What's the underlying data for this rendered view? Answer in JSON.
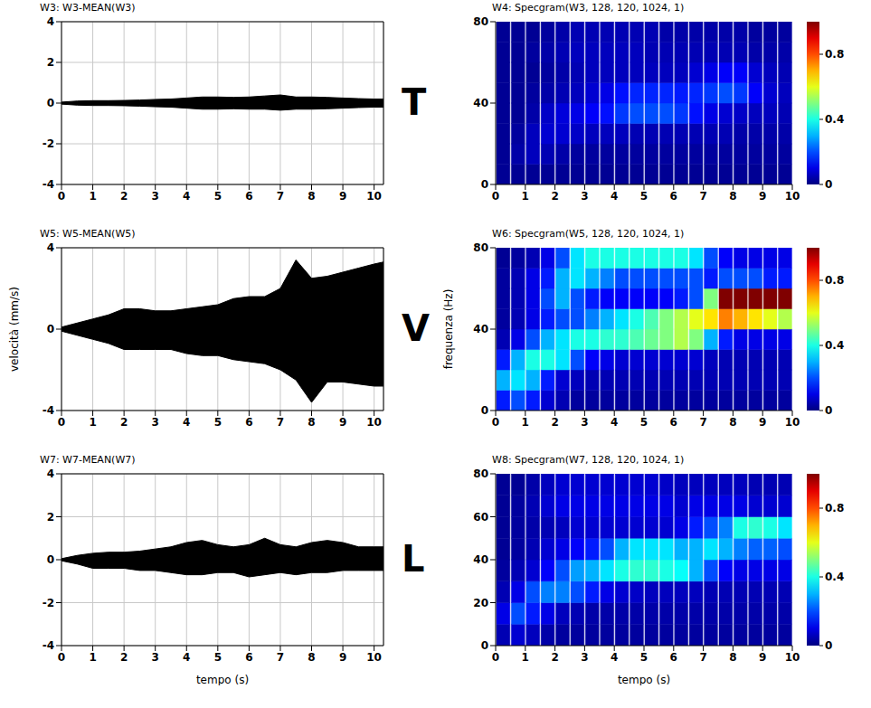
{
  "chart_data": [
    {
      "type": "area",
      "title": "W3: W3-MEAN(W3)",
      "annotation": "T",
      "color": "#000000",
      "grid": true,
      "x": [
        0,
        0.5,
        1,
        1.5,
        2,
        2.5,
        3,
        3.5,
        4,
        4.5,
        5,
        5.5,
        6,
        6.5,
        7,
        7.5,
        8,
        8.5,
        9,
        9.5,
        10,
        10.3
      ],
      "upper": [
        0.05,
        0.1,
        0.12,
        0.12,
        0.13,
        0.15,
        0.18,
        0.2,
        0.25,
        0.3,
        0.3,
        0.28,
        0.3,
        0.35,
        0.4,
        0.3,
        0.3,
        0.28,
        0.25,
        0.22,
        0.2,
        0.2
      ],
      "lower": [
        -0.05,
        -0.1,
        -0.12,
        -0.12,
        -0.13,
        -0.15,
        -0.18,
        -0.2,
        -0.25,
        -0.3,
        -0.3,
        -0.28,
        -0.3,
        -0.3,
        -0.35,
        -0.3,
        -0.3,
        -0.28,
        -0.25,
        -0.22,
        -0.2,
        -0.2
      ],
      "xlim": [
        0,
        10.3
      ],
      "xticks": [
        0,
        1,
        2,
        3,
        4,
        5,
        6,
        7,
        8,
        9,
        10
      ],
      "ylim": [
        -4,
        4
      ],
      "yticks": [
        -4,
        -2,
        0,
        2,
        4
      ]
    },
    {
      "type": "heatmap",
      "title": "W4: Specgram(W3, 128, 120, 1024, 1)",
      "grid": false,
      "x_edges": [
        0,
        0.5,
        1,
        1.5,
        2,
        2.5,
        3,
        3.5,
        4,
        4.5,
        5,
        5.5,
        6,
        6.5,
        7,
        7.5,
        8,
        8.5,
        9,
        9.5,
        10
      ],
      "y_edges": [
        0,
        10,
        20,
        30,
        40,
        50,
        60,
        70,
        80
      ],
      "z": [
        [
          0.02,
          0.02,
          0.02,
          0.02,
          0.02,
          0.02,
          0.02,
          0.02,
          0.02,
          0.02,
          0.02,
          0.02,
          0.02,
          0.02,
          0.02,
          0.02,
          0.02,
          0.02,
          0.02,
          0.02
        ],
        [
          0.02,
          0.04,
          0.06,
          0.05,
          0.04,
          0.03,
          0.03,
          0.03,
          0.03,
          0.03,
          0.03,
          0.03,
          0.03,
          0.03,
          0.03,
          0.03,
          0.03,
          0.03,
          0.03,
          0.03
        ],
        [
          0.02,
          0.03,
          0.06,
          0.08,
          0.08,
          0.07,
          0.06,
          0.06,
          0.06,
          0.05,
          0.05,
          0.05,
          0.05,
          0.05,
          0.05,
          0.05,
          0.04,
          0.04,
          0.04,
          0.04
        ],
        [
          0.02,
          0.02,
          0.04,
          0.07,
          0.09,
          0.1,
          0.12,
          0.14,
          0.18,
          0.2,
          0.2,
          0.2,
          0.18,
          0.14,
          0.1,
          0.08,
          0.07,
          0.06,
          0.06,
          0.05
        ],
        [
          0.02,
          0.02,
          0.03,
          0.04,
          0.05,
          0.06,
          0.08,
          0.1,
          0.14,
          0.16,
          0.16,
          0.16,
          0.15,
          0.16,
          0.18,
          0.2,
          0.18,
          0.12,
          0.08,
          0.06
        ],
        [
          0.02,
          0.02,
          0.02,
          0.03,
          0.04,
          0.05,
          0.06,
          0.06,
          0.06,
          0.06,
          0.06,
          0.06,
          0.06,
          0.08,
          0.1,
          0.12,
          0.12,
          0.08,
          0.06,
          0.05
        ],
        [
          0.02,
          0.02,
          0.03,
          0.04,
          0.05,
          0.06,
          0.06,
          0.06,
          0.06,
          0.06,
          0.05,
          0.05,
          0.05,
          0.05,
          0.05,
          0.05,
          0.05,
          0.04,
          0.04,
          0.04
        ],
        [
          0.02,
          0.02,
          0.02,
          0.03,
          0.04,
          0.05,
          0.05,
          0.05,
          0.05,
          0.05,
          0.05,
          0.04,
          0.04,
          0.04,
          0.04,
          0.04,
          0.04,
          0.03,
          0.03,
          0.03
        ]
      ],
      "xlim": [
        0,
        10
      ],
      "xticks": [
        0,
        1,
        2,
        3,
        4,
        5,
        6,
        7,
        8,
        9,
        10
      ],
      "ylim": [
        0,
        80
      ],
      "yticks": [
        0,
        40,
        80
      ],
      "colorbar_range": [
        0,
        1
      ],
      "colorbar_ticks": [
        0,
        0.4,
        0.8
      ]
    },
    {
      "type": "area",
      "title": "W5: W5-MEAN(W5)",
      "annotation": "V",
      "ylabel": "velocità (mm/s)",
      "color": "#000000",
      "grid": true,
      "x": [
        0,
        0.5,
        1,
        1.5,
        2,
        2.5,
        3,
        3.5,
        4,
        4.5,
        5,
        5.5,
        6,
        6.5,
        7,
        7.5,
        8,
        8.5,
        9,
        9.5,
        10,
        10.3
      ],
      "upper": [
        0.1,
        0.3,
        0.5,
        0.7,
        1.0,
        1.0,
        0.9,
        0.9,
        1.0,
        1.1,
        1.2,
        1.5,
        1.6,
        1.6,
        2.0,
        3.4,
        2.5,
        2.6,
        2.8,
        3.0,
        3.2,
        3.3
      ],
      "lower": [
        -0.1,
        -0.3,
        -0.5,
        -0.7,
        -1.0,
        -1.0,
        -1.0,
        -1.0,
        -1.2,
        -1.3,
        -1.3,
        -1.5,
        -1.6,
        -1.7,
        -2.0,
        -2.5,
        -3.6,
        -2.6,
        -2.6,
        -2.7,
        -2.8,
        -2.8
      ],
      "xlim": [
        0,
        10.3
      ],
      "xticks": [
        0,
        1,
        2,
        3,
        4,
        5,
        6,
        7,
        8,
        9,
        10
      ],
      "ylim": [
        -4,
        4
      ],
      "yticks": [
        -4,
        0,
        4
      ]
    },
    {
      "type": "heatmap",
      "title": "W6: Specgram(W5, 128, 120, 1024, 1)",
      "ylabel": "frequenza (Hz)",
      "grid": false,
      "x_edges": [
        0,
        0.5,
        1,
        1.5,
        2,
        2.5,
        3,
        3.5,
        4,
        4.5,
        5,
        5.5,
        6,
        6.5,
        7,
        7.5,
        8,
        8.5,
        9,
        9.5,
        10
      ],
      "y_edges": [
        0,
        10,
        20,
        30,
        40,
        50,
        60,
        70,
        80
      ],
      "z": [
        [
          0.15,
          0.2,
          0.15,
          0.08,
          0.05,
          0.03,
          0.03,
          0.03,
          0.03,
          0.03,
          0.03,
          0.03,
          0.03,
          0.03,
          0.03,
          0.03,
          0.03,
          0.03,
          0.03,
          0.03
        ],
        [
          0.3,
          0.35,
          0.3,
          0.15,
          0.08,
          0.06,
          0.05,
          0.05,
          0.05,
          0.05,
          0.05,
          0.05,
          0.05,
          0.05,
          0.05,
          0.05,
          0.05,
          0.05,
          0.05,
          0.05
        ],
        [
          0.15,
          0.3,
          0.4,
          0.4,
          0.35,
          0.2,
          0.12,
          0.1,
          0.08,
          0.08,
          0.08,
          0.08,
          0.08,
          0.08,
          0.06,
          0.05,
          0.05,
          0.05,
          0.05,
          0.05
        ],
        [
          0.05,
          0.1,
          0.2,
          0.3,
          0.35,
          0.4,
          0.4,
          0.42,
          0.42,
          0.45,
          0.48,
          0.5,
          0.55,
          0.5,
          0.3,
          0.15,
          0.1,
          0.1,
          0.1,
          0.1
        ],
        [
          0.03,
          0.05,
          0.1,
          0.15,
          0.2,
          0.2,
          0.25,
          0.3,
          0.35,
          0.4,
          0.45,
          0.5,
          0.55,
          0.6,
          0.65,
          0.75,
          0.7,
          0.65,
          0.6,
          0.55
        ],
        [
          0.03,
          0.05,
          0.1,
          0.2,
          0.3,
          0.2,
          0.15,
          0.12,
          0.12,
          0.12,
          0.12,
          0.12,
          0.15,
          0.2,
          0.5,
          1.0,
          1.0,
          1.0,
          1.0,
          1.0
        ],
        [
          0.03,
          0.05,
          0.1,
          0.15,
          0.3,
          0.35,
          0.3,
          0.25,
          0.2,
          0.2,
          0.2,
          0.2,
          0.2,
          0.2,
          0.15,
          0.2,
          0.2,
          0.2,
          0.15,
          0.15
        ],
        [
          0.02,
          0.03,
          0.05,
          0.1,
          0.2,
          0.35,
          0.4,
          0.4,
          0.4,
          0.4,
          0.4,
          0.4,
          0.4,
          0.35,
          0.2,
          0.12,
          0.1,
          0.1,
          0.1,
          0.1
        ]
      ],
      "xlim": [
        0,
        10
      ],
      "xticks": [
        0,
        1,
        2,
        3,
        4,
        5,
        6,
        7,
        8,
        9,
        10
      ],
      "ylim": [
        0,
        80
      ],
      "yticks": [
        0,
        40,
        80
      ],
      "colorbar_range": [
        0,
        1
      ],
      "colorbar_ticks": [
        0,
        0.4,
        0.8
      ]
    },
    {
      "type": "area",
      "title": "W7: W7-MEAN(W7)",
      "annotation": "L",
      "xlabel": "tempo (s)",
      "color": "#000000",
      "grid": true,
      "x": [
        0,
        0.5,
        1,
        1.5,
        2,
        2.5,
        3,
        3.5,
        4,
        4.5,
        5,
        5.5,
        6,
        6.5,
        7,
        7.5,
        8,
        8.5,
        9,
        9.5,
        10,
        10.3
      ],
      "upper": [
        0.05,
        0.2,
        0.3,
        0.35,
        0.35,
        0.4,
        0.5,
        0.6,
        0.8,
        0.9,
        0.7,
        0.6,
        0.7,
        1.0,
        0.7,
        0.6,
        0.8,
        0.9,
        0.8,
        0.6,
        0.6,
        0.6
      ],
      "lower": [
        -0.05,
        -0.2,
        -0.4,
        -0.4,
        -0.4,
        -0.5,
        -0.5,
        -0.6,
        -0.7,
        -0.7,
        -0.6,
        -0.6,
        -0.8,
        -0.7,
        -0.6,
        -0.7,
        -0.6,
        -0.6,
        -0.5,
        -0.5,
        -0.5,
        -0.5
      ],
      "xlim": [
        0,
        10.3
      ],
      "xticks": [
        0,
        1,
        2,
        3,
        4,
        5,
        6,
        7,
        8,
        9,
        10
      ],
      "ylim": [
        -4,
        4
      ],
      "yticks": [
        -4,
        -2,
        0,
        2,
        4
      ]
    },
    {
      "type": "heatmap",
      "title": "W8: Specgram(W7, 128, 120, 1024, 1)",
      "xlabel": "tempo (s)",
      "grid": false,
      "x_edges": [
        0,
        0.5,
        1,
        1.5,
        2,
        2.5,
        3,
        3.5,
        4,
        4.5,
        5,
        5.5,
        6,
        6.5,
        7,
        7.5,
        8,
        8.5,
        9,
        9.5,
        10
      ],
      "y_edges": [
        0,
        10,
        20,
        30,
        40,
        50,
        60,
        70,
        80
      ],
      "z": [
        [
          0.05,
          0.08,
          0.06,
          0.04,
          0.03,
          0.03,
          0.03,
          0.03,
          0.03,
          0.03,
          0.03,
          0.03,
          0.03,
          0.03,
          0.03,
          0.03,
          0.03,
          0.03,
          0.03,
          0.03
        ],
        [
          0.1,
          0.2,
          0.15,
          0.1,
          0.06,
          0.05,
          0.04,
          0.04,
          0.04,
          0.04,
          0.04,
          0.04,
          0.04,
          0.04,
          0.04,
          0.04,
          0.04,
          0.04,
          0.04,
          0.04
        ],
        [
          0.05,
          0.1,
          0.2,
          0.25,
          0.25,
          0.2,
          0.15,
          0.1,
          0.08,
          0.07,
          0.06,
          0.06,
          0.06,
          0.06,
          0.05,
          0.05,
          0.05,
          0.05,
          0.05,
          0.05
        ],
        [
          0.03,
          0.05,
          0.08,
          0.12,
          0.2,
          0.28,
          0.3,
          0.35,
          0.4,
          0.42,
          0.42,
          0.4,
          0.38,
          0.3,
          0.2,
          0.12,
          0.1,
          0.1,
          0.1,
          0.1
        ],
        [
          0.02,
          0.03,
          0.05,
          0.08,
          0.1,
          0.12,
          0.15,
          0.2,
          0.3,
          0.35,
          0.35,
          0.35,
          0.3,
          0.3,
          0.35,
          0.3,
          0.25,
          0.22,
          0.22,
          0.2
        ],
        [
          0.02,
          0.03,
          0.04,
          0.05,
          0.06,
          0.08,
          0.08,
          0.08,
          0.08,
          0.08,
          0.08,
          0.08,
          0.1,
          0.15,
          0.2,
          0.25,
          0.4,
          0.42,
          0.4,
          0.35
        ],
        [
          0.02,
          0.03,
          0.05,
          0.08,
          0.1,
          0.1,
          0.1,
          0.1,
          0.1,
          0.1,
          0.1,
          0.1,
          0.08,
          0.1,
          0.1,
          0.1,
          0.1,
          0.08,
          0.08,
          0.08
        ],
        [
          0.02,
          0.02,
          0.04,
          0.06,
          0.08,
          0.08,
          0.08,
          0.08,
          0.08,
          0.08,
          0.08,
          0.07,
          0.06,
          0.06,
          0.06,
          0.06,
          0.06,
          0.05,
          0.05,
          0.05
        ]
      ],
      "xlim": [
        0,
        10
      ],
      "xticks": [
        0,
        1,
        2,
        3,
        4,
        5,
        6,
        7,
        8,
        9,
        10
      ],
      "ylim": [
        0,
        80
      ],
      "yticks": [
        0,
        20,
        40,
        60,
        80
      ],
      "colorbar_range": [
        0,
        1
      ],
      "colorbar_ticks": [
        0,
        0.4,
        0.8
      ]
    }
  ]
}
